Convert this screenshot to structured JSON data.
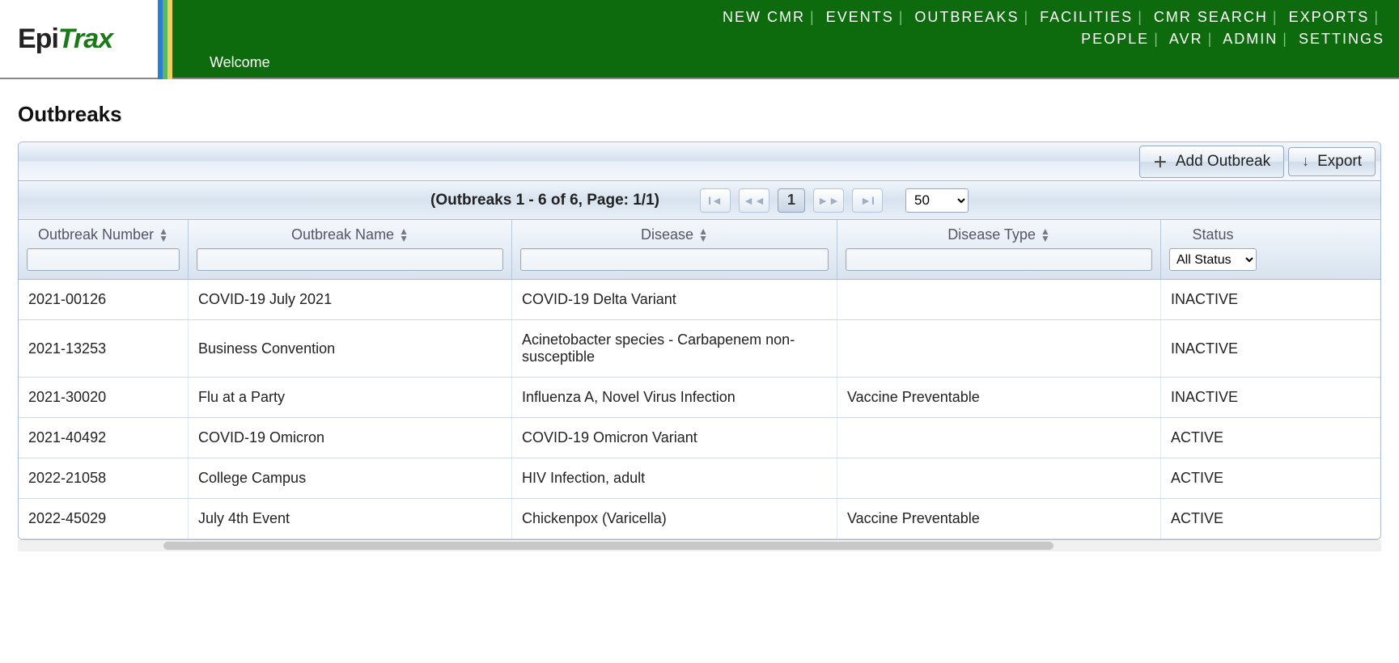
{
  "logo": {
    "left": "Epi",
    "right": "Trax"
  },
  "nav": {
    "row1": [
      "NEW CMR",
      "EVENTS",
      "OUTBREAKS",
      "FACILITIES",
      "CMR SEARCH",
      "EXPORTS"
    ],
    "row2": [
      "PEOPLE",
      "AVR",
      "ADMIN",
      "SETTINGS"
    ],
    "welcome": "Welcome"
  },
  "page": {
    "title": "Outbreaks"
  },
  "toolbar": {
    "add_label": "Add Outbreak",
    "export_label": "Export"
  },
  "paginator": {
    "summary": "(Outbreaks 1 - 6 of 6, Page: 1/1)",
    "current_page": "1",
    "page_size": "50"
  },
  "columns": {
    "number": "Outbreak Number",
    "name": "Outbreak Name",
    "disease": "Disease",
    "type": "Disease Type",
    "status": "Status",
    "status_filter": "All Status"
  },
  "rows": [
    {
      "number": "2021-00126",
      "name": "COVID-19 July 2021",
      "disease": "COVID-19 Delta Variant",
      "type": "",
      "status": "INACTIVE"
    },
    {
      "number": "2021-13253",
      "name": "Business Convention",
      "disease": "Acinetobacter species - Carbapenem non-susceptible",
      "type": "",
      "status": "INACTIVE"
    },
    {
      "number": "2021-30020",
      "name": "Flu at a Party",
      "disease": "Influenza A, Novel Virus Infection",
      "type": "Vaccine Preventable",
      "status": "INACTIVE"
    },
    {
      "number": "2021-40492",
      "name": "COVID-19 Omicron",
      "disease": "COVID-19 Omicron Variant",
      "type": "",
      "status": "ACTIVE"
    },
    {
      "number": "2022-21058",
      "name": "College Campus",
      "disease": "HIV Infection, adult",
      "type": "",
      "status": "ACTIVE"
    },
    {
      "number": "2022-45029",
      "name": "July 4th Event",
      "disease": "Chickenpox (Varicella)",
      "type": "Vaccine Preventable",
      "status": "ACTIVE"
    }
  ]
}
